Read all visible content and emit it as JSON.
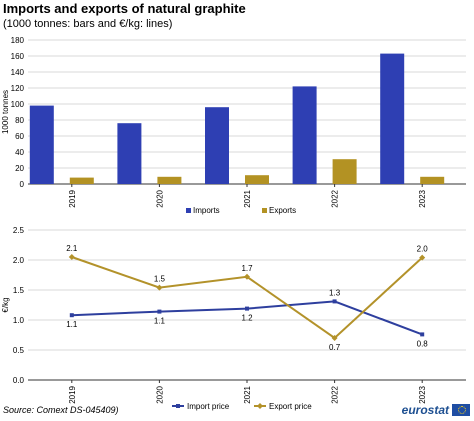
{
  "header": {
    "title": "Imports and exports of natural graphite",
    "subtitle": "(1000 tonnes: bars and €/kg: lines)"
  },
  "footer": {
    "source": "Source: Comext DS-045409)",
    "logo_text": "eurostat"
  },
  "colors": {
    "imports": "#2e3fb3",
    "exports": "#b39223",
    "import_price": "#2e3f9e",
    "export_price": "#b3922a",
    "grid": "#d9d9d9",
    "axis": "#333333"
  },
  "chart_data": [
    {
      "type": "bar",
      "categories": [
        "2019",
        "2020",
        "2021",
        "2022",
        "2023"
      ],
      "series": [
        {
          "name": "Imports",
          "values": [
            98,
            76,
            96,
            122,
            163
          ]
        },
        {
          "name": "Exports",
          "values": [
            8,
            9,
            11,
            31,
            9
          ]
        }
      ],
      "ylabel": "1000 tonnes",
      "ylim": [
        0,
        180
      ],
      "yticks": [
        "0",
        "20",
        "40",
        "60",
        "80",
        "100",
        "120",
        "140",
        "160",
        "180"
      ],
      "grid": true,
      "legend_position": "bottom"
    },
    {
      "type": "line",
      "categories": [
        "2019",
        "2020",
        "2021",
        "2022",
        "2023"
      ],
      "series": [
        {
          "name": "Import price",
          "values": [
            1.08,
            1.14,
            1.19,
            1.31,
            0.76
          ],
          "labels": [
            "1.1",
            "1.1",
            "1.2",
            "1.3",
            "0.8"
          ]
        },
        {
          "name": "Export price",
          "values": [
            2.05,
            1.54,
            1.72,
            0.7,
            2.04
          ],
          "labels": [
            "2.1",
            "1.5",
            "1.7",
            "0.7",
            "2.0"
          ]
        }
      ],
      "ylabel": "€/kg",
      "ylim": [
        0,
        2.5
      ],
      "yticks": [
        "0.0",
        "0.5",
        "1.0",
        "1.5",
        "2.0",
        "2.5"
      ],
      "grid": true,
      "legend_position": "bottom"
    }
  ]
}
